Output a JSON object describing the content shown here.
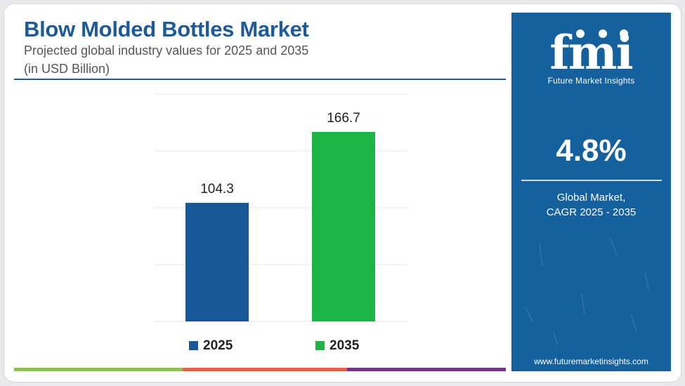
{
  "header": {
    "title": "Blow Molded Bottles Market",
    "subtitle": "Projected global industry values for 2025 and 2035",
    "unit": "(in USD Billion)"
  },
  "chart_data": {
    "type": "bar",
    "categories": [
      "2025",
      "2035"
    ],
    "values": [
      104.3,
      166.7
    ],
    "ylim": [
      0,
      200
    ],
    "grid": true,
    "legend": "bottom",
    "colors": [
      "#17589a",
      "#1db446"
    ],
    "legend_labels": [
      "2025",
      "2035"
    ]
  },
  "sidebar": {
    "logo_text": "Future Market Insights",
    "cagr_value": "4.8%",
    "cagr_label_line1": "Global Market,",
    "cagr_label_line2": "CAGR 2025 - 2035",
    "url": "www.futuremarketinsights.com"
  },
  "colors": {
    "brand_blue": "#15609f",
    "title_blue": "#1d5a9a",
    "stripe": [
      "#8bc34a",
      "#e8603c",
      "#7a2e8e"
    ]
  }
}
